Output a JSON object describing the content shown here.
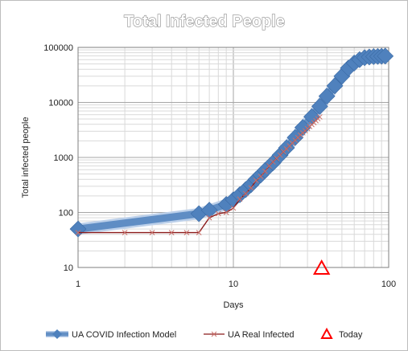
{
  "chart_data": {
    "type": "line",
    "title": "Total Infected People",
    "xlabel": "Days",
    "ylabel": "Total infected people",
    "x_scale": "log",
    "y_scale": "log",
    "xlim": [
      1,
      100
    ],
    "ylim": [
      10,
      100000
    ],
    "x_ticks": [
      "1",
      "10",
      "100"
    ],
    "y_ticks": [
      "10",
      "100",
      "1000",
      "10000",
      "100000"
    ],
    "grid": "major and minor",
    "legend_position": "bottom",
    "series": [
      {
        "name": "UA COVID Infection Model",
        "color": "#4f81bd",
        "marker": "diamond",
        "x": [
          1,
          6,
          7,
          9,
          10,
          11,
          12,
          13,
          14,
          15,
          16,
          18,
          20,
          22,
          25,
          28,
          32,
          36,
          40,
          45,
          50,
          55,
          60,
          65,
          70,
          75,
          80,
          85,
          90,
          95
        ],
        "y": [
          50,
          95,
          110,
          140,
          170,
          210,
          260,
          320,
          400,
          480,
          580,
          800,
          1100,
          1500,
          2300,
          3500,
          5500,
          8500,
          13000,
          20000,
          30000,
          42000,
          52000,
          60000,
          65000,
          67000,
          68000,
          68500,
          69000,
          69500
        ]
      },
      {
        "name": "UA Real Infected",
        "color": "#8b1a1a",
        "marker": "x",
        "x": [
          1,
          2,
          3,
          4,
          5,
          6,
          7,
          8,
          9,
          10,
          11,
          12,
          13,
          14,
          15,
          16,
          17,
          18,
          19,
          20,
          21,
          22,
          23,
          24,
          25,
          26,
          27,
          28,
          29,
          30,
          31,
          32,
          33,
          34,
          35,
          36
        ],
        "y": [
          43,
          43,
          43,
          43,
          43,
          43,
          80,
          95,
          100,
          120,
          175,
          220,
          280,
          380,
          450,
          560,
          700,
          830,
          960,
          1100,
          1270,
          1430,
          1620,
          1830,
          2050,
          2300,
          2550,
          2800,
          3050,
          3350,
          3650,
          3950,
          4300,
          4650,
          5050,
          5450
        ]
      },
      {
        "name": "Today",
        "color": "#ff0000",
        "marker": "triangle",
        "x": [
          37
        ],
        "y": [
          10
        ]
      }
    ]
  }
}
